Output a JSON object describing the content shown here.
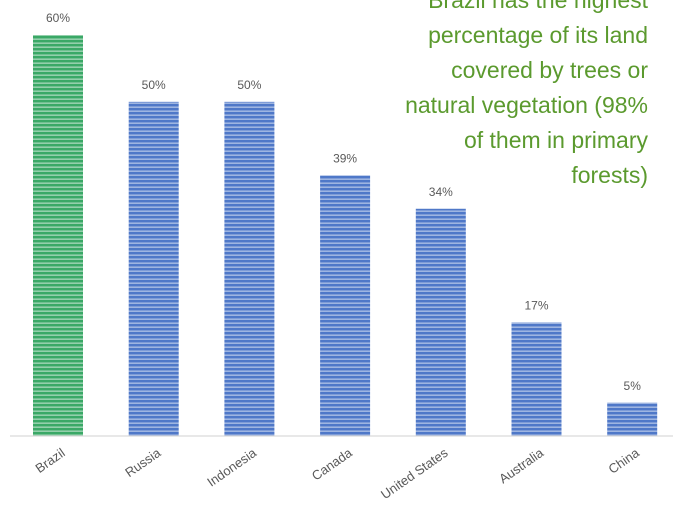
{
  "chart_data": {
    "type": "bar",
    "annotation": [
      "Brazil has the highest",
      "percentage of its land",
      "covered by trees or",
      "natural vegetation (98%",
      "of them in primary",
      "forests)"
    ],
    "categories": [
      "Brazil",
      "Russia",
      "Indonesia",
      "Canada",
      "United States",
      "Australia",
      "China"
    ],
    "values": [
      60,
      50,
      50,
      39,
      34,
      17,
      5
    ],
    "value_labels": [
      "60%",
      "50%",
      "50%",
      "39%",
      "34%",
      "17%",
      "5%"
    ],
    "colors": [
      "#3aa866",
      "#4f78c8",
      "#4f78c8",
      "#4f78c8",
      "#4f78c8",
      "#4f78c8",
      "#4f78c8"
    ],
    "ylim": [
      0,
      60
    ]
  }
}
